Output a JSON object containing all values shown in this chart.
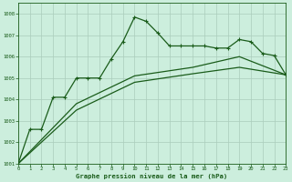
{
  "title": "Graphe pression niveau de la mer (hPa)",
  "bg_color": "#cceedd",
  "grid_color": "#aaccbb",
  "line_color": "#1a5c1a",
  "xlim": [
    0,
    23
  ],
  "ylim": [
    1001,
    1008.5
  ],
  "yticks": [
    1001,
    1002,
    1003,
    1004,
    1005,
    1006,
    1007,
    1008
  ],
  "xticks": [
    0,
    1,
    2,
    3,
    4,
    5,
    6,
    7,
    8,
    9,
    10,
    11,
    12,
    13,
    14,
    15,
    16,
    17,
    18,
    19,
    20,
    21,
    22,
    23
  ],
  "line_main": {
    "x": [
      0,
      1,
      2,
      3,
      4,
      5,
      6,
      7,
      8,
      9,
      10,
      11,
      12,
      13,
      14,
      15,
      16,
      17,
      18,
      19,
      20,
      21,
      22,
      23
    ],
    "y": [
      1001.0,
      1002.6,
      1002.6,
      1004.1,
      1004.1,
      1005.0,
      1005.0,
      1005.0,
      1005.9,
      1006.7,
      1007.85,
      1007.65,
      1007.1,
      1006.5,
      1006.5,
      1006.5,
      1006.5,
      1006.4,
      1006.4,
      1006.8,
      1006.7,
      1006.15,
      1006.05,
      1005.15
    ]
  },
  "line_low": {
    "x": [
      0,
      5,
      10,
      15,
      19,
      23
    ],
    "y": [
      1001.0,
      1003.5,
      1004.8,
      1005.2,
      1005.5,
      1005.15
    ]
  },
  "line_mid": {
    "x": [
      0,
      5,
      10,
      15,
      19,
      23
    ],
    "y": [
      1001.0,
      1003.8,
      1005.1,
      1005.5,
      1006.0,
      1005.15
    ]
  }
}
